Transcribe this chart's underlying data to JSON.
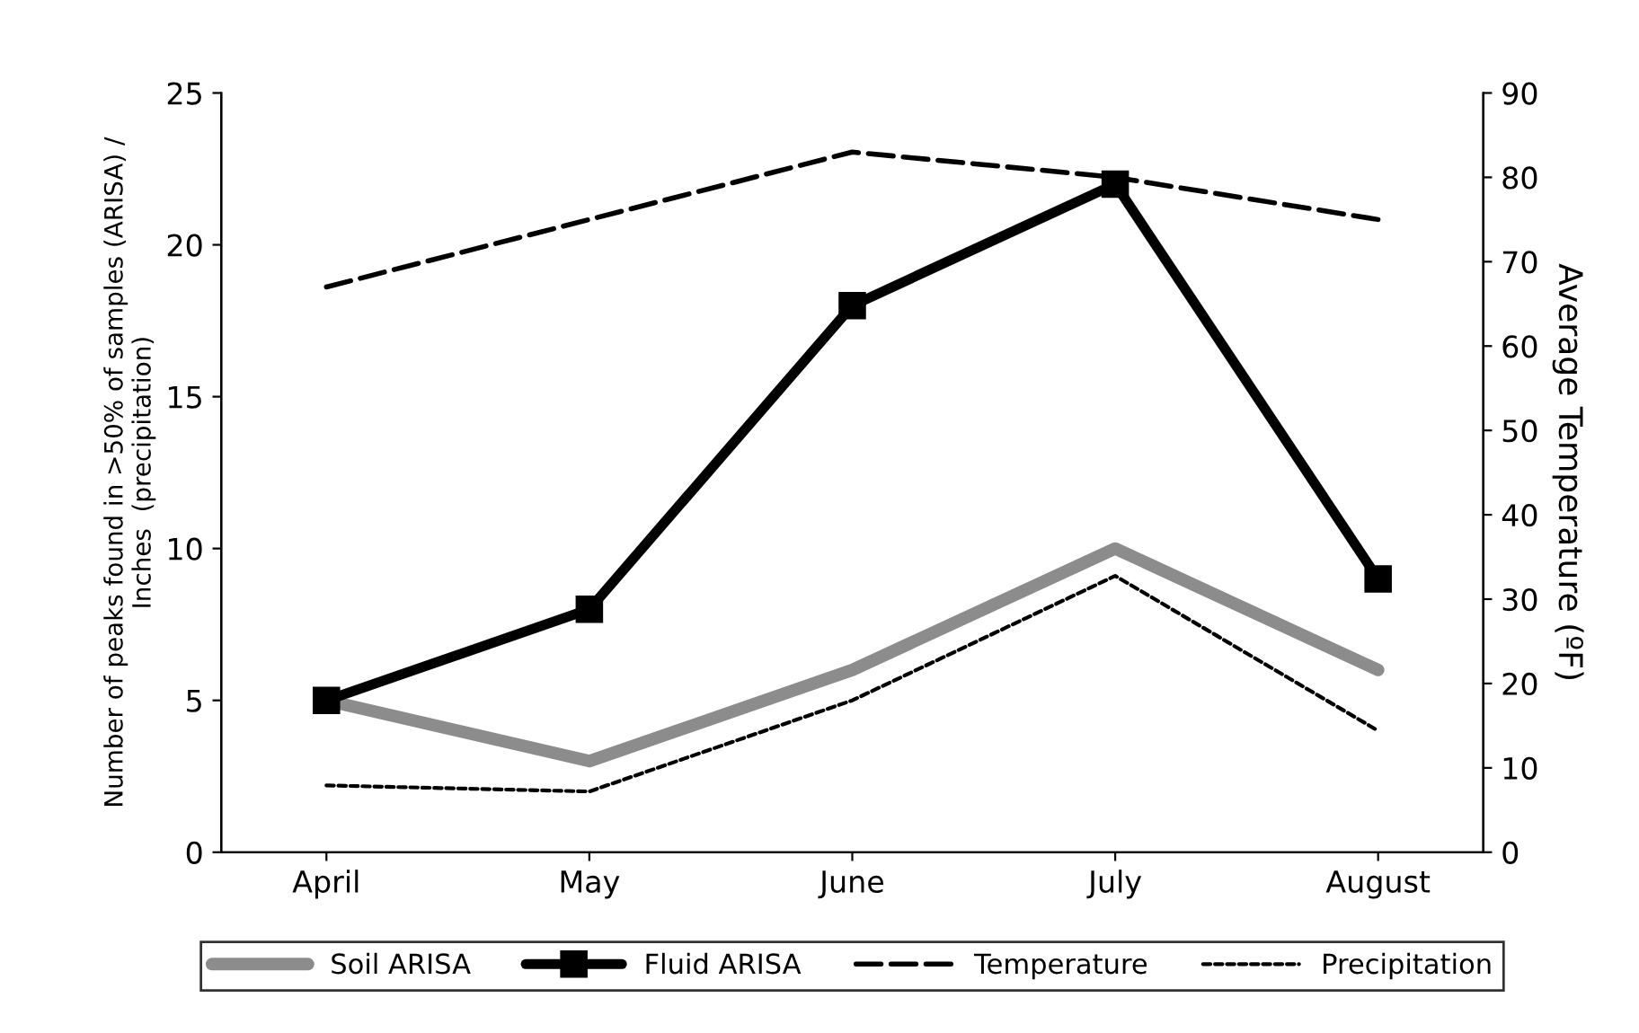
{
  "chart_data": {
    "type": "line",
    "categories": [
      "April",
      "May",
      "June",
      "July",
      "August"
    ],
    "ylabel": "Number of peaks found in >50% of samples (ARISA) /\nInches  (precipitation)",
    "y2label": "Average Temperature (ºF)",
    "ylim": [
      0,
      25
    ],
    "yticks": [
      0,
      5,
      10,
      15,
      20,
      25
    ],
    "y2lim": [
      0,
      90
    ],
    "y2ticks": [
      0,
      10,
      20,
      30,
      40,
      50,
      60,
      70,
      80,
      90
    ],
    "grid": false,
    "legend": "bottom",
    "series": [
      {
        "name": "Soil ARISA",
        "color": "#8c8c8c",
        "values": [
          5,
          3,
          6,
          10,
          6
        ],
        "marker": "none",
        "line_style": "solid"
      },
      {
        "name": "Fluid ARISA",
        "color": "#000000",
        "values": [
          5,
          8,
          18,
          22,
          9
        ],
        "marker": "square",
        "line_style": "solid"
      },
      {
        "name": "Temperature",
        "color": "#000000",
        "values": [
          67,
          75,
          83,
          80,
          75
        ],
        "axis": "y2",
        "marker": "none",
        "line_style": "dashed"
      },
      {
        "name": "Precipitation",
        "color": "#000000",
        "values": [
          2.2,
          2.0,
          5.0,
          9.1,
          4.0
        ],
        "marker": "none",
        "line_style": "dotted"
      }
    ]
  }
}
